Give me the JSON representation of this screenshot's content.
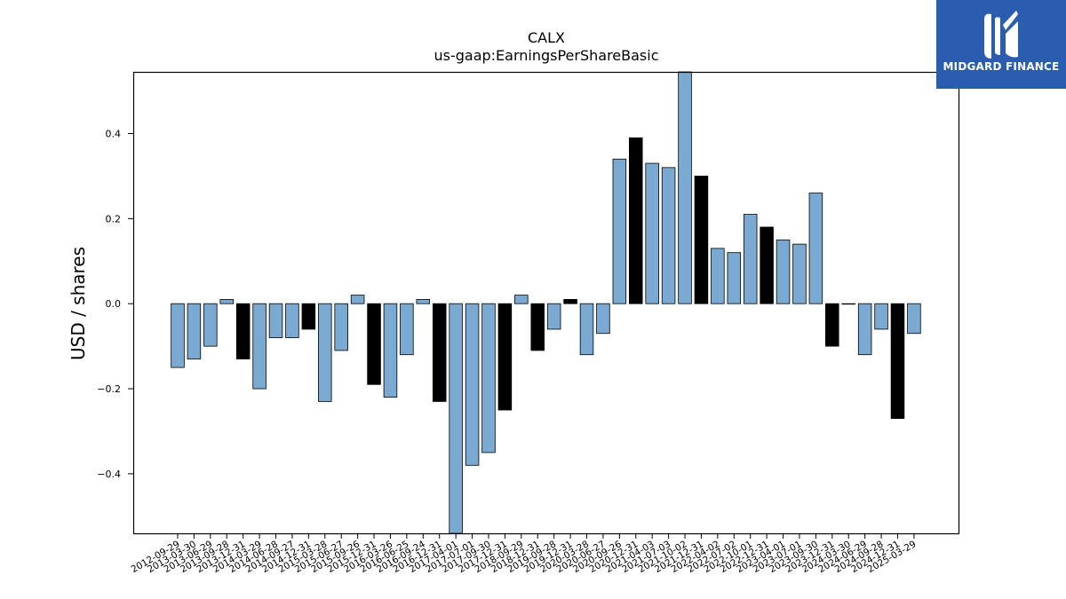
{
  "colors": {
    "bar_default": "#7aaad2",
    "bar_highlight": "#000000",
    "bar_edge": "#000000",
    "logo_bg": "#2a5db0",
    "logo_fg": "#ffffff"
  },
  "logo": {
    "text": "MIDGARD FINANCE",
    "icon": "midgard-logo-icon"
  },
  "chart_data": {
    "type": "bar",
    "title": "CALX",
    "subtitle": "us-gaap:EarningsPerShareBasic",
    "xlabel": "",
    "ylabel": "USD / shares",
    "ylim": [
      -0.54,
      0.545
    ],
    "yticks": [
      -0.4,
      -0.2,
      0.0,
      0.2,
      0.4
    ],
    "ytick_labels": [
      "−0.4",
      "−0.2",
      "0.0",
      "0.2",
      "0.4"
    ],
    "grid": false,
    "legend": "none",
    "highlight_rule": "fiscal year-end (Q4) periods drawn in black",
    "categories": [
      "2012-09-29",
      "2013-03-30",
      "2013-06-29",
      "2013-09-28",
      "2013-12-31",
      "2014-03-29",
      "2014-06-28",
      "2014-09-27",
      "2014-12-31",
      "2015-03-28",
      "2015-06-27",
      "2015-09-26",
      "2015-12-31",
      "2016-03-26",
      "2016-06-25",
      "2016-09-24",
      "2016-12-31",
      "2017-04-01",
      "2017-07-01",
      "2017-09-30",
      "2017-12-31",
      "2018-09-29",
      "2018-12-31",
      "2019-09-28",
      "2019-12-31",
      "2020-03-28",
      "2020-06-27",
      "2020-09-26",
      "2020-12-31",
      "2021-04-03",
      "2021-07-03",
      "2021-10-02",
      "2021-12-31",
      "2022-04-02",
      "2022-07-02",
      "2022-10-01",
      "2022-12-31",
      "2023-04-01",
      "2023-07-01",
      "2023-09-30",
      "2023-12-31",
      "2024-03-30",
      "2024-06-29",
      "2024-09-28",
      "2024-12-31",
      "2025-03-29"
    ],
    "values": [
      -0.15,
      -0.13,
      -0.1,
      0.01,
      -0.13,
      -0.2,
      -0.08,
      -0.08,
      -0.06,
      -0.23,
      -0.11,
      0.02,
      -0.19,
      -0.22,
      -0.12,
      0.01,
      -0.23,
      -0.54,
      -0.38,
      -0.35,
      -0.25,
      0.02,
      -0.11,
      -0.06,
      0.01,
      -0.12,
      -0.07,
      0.34,
      0.39,
      0.33,
      0.32,
      0.55,
      0.3,
      0.13,
      0.12,
      0.21,
      0.18,
      0.15,
      0.14,
      0.26,
      -0.1,
      0.0,
      -0.12,
      -0.06,
      -0.27,
      -0.07
    ],
    "highlight": [
      false,
      false,
      false,
      false,
      true,
      false,
      false,
      false,
      true,
      false,
      false,
      false,
      true,
      false,
      false,
      false,
      true,
      false,
      false,
      false,
      true,
      false,
      true,
      false,
      true,
      false,
      false,
      false,
      true,
      false,
      false,
      false,
      true,
      false,
      false,
      false,
      true,
      false,
      false,
      false,
      true,
      false,
      false,
      false,
      true,
      false
    ]
  }
}
